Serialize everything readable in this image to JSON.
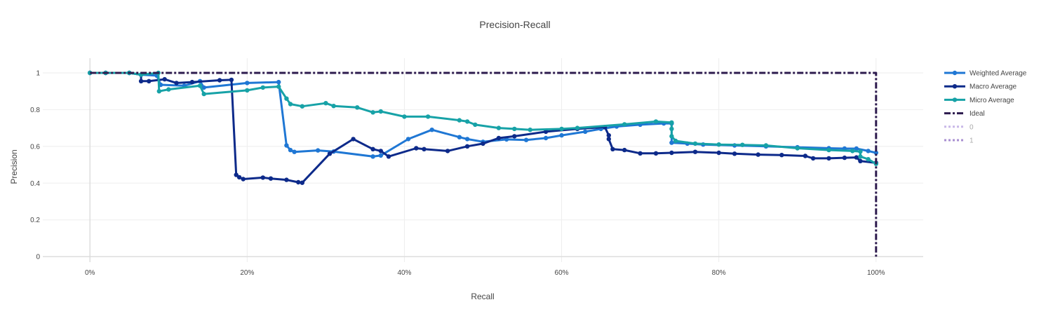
{
  "chart_data": {
    "type": "line",
    "title": "Precision-Recall",
    "xlabel": "Recall",
    "ylabel": "Precision",
    "xlim": [
      -0.06,
      1.06
    ],
    "ylim": [
      -0.03,
      1.08
    ],
    "x_ticks": [
      {
        "value": 0,
        "label": "0%"
      },
      {
        "value": 0.2,
        "label": "20%"
      },
      {
        "value": 0.4,
        "label": "40%"
      },
      {
        "value": 0.6,
        "label": "60%"
      },
      {
        "value": 0.8,
        "label": "80%"
      },
      {
        "value": 1.0,
        "label": "100%"
      }
    ],
    "y_ticks": [
      {
        "value": 0,
        "label": "0"
      },
      {
        "value": 0.2,
        "label": "0.2"
      },
      {
        "value": 0.4,
        "label": "0.4"
      },
      {
        "value": 0.6,
        "label": "0.6"
      },
      {
        "value": 0.8,
        "label": "0.8"
      },
      {
        "value": 1,
        "label": "1"
      }
    ],
    "grid": true,
    "legend_position": "top-right",
    "series": [
      {
        "name": "Weighted Average",
        "color": "#1f77d4",
        "markers": true,
        "dash": "solid",
        "points": [
          [
            0,
            1
          ],
          [
            0.02,
            1
          ],
          [
            0.05,
            1
          ],
          [
            0.065,
            0.99
          ],
          [
            0.085,
            0.985
          ],
          [
            0.09,
            0.935
          ],
          [
            0.12,
            0.93
          ],
          [
            0.14,
            0.955
          ],
          [
            0.145,
            0.92
          ],
          [
            0.2,
            0.945
          ],
          [
            0.24,
            0.95
          ],
          [
            0.25,
            0.605
          ],
          [
            0.255,
            0.58
          ],
          [
            0.26,
            0.57
          ],
          [
            0.29,
            0.578
          ],
          [
            0.31,
            0.572
          ],
          [
            0.36,
            0.545
          ],
          [
            0.37,
            0.55
          ],
          [
            0.405,
            0.64
          ],
          [
            0.435,
            0.69
          ],
          [
            0.47,
            0.65
          ],
          [
            0.48,
            0.64
          ],
          [
            0.5,
            0.625
          ],
          [
            0.53,
            0.638
          ],
          [
            0.555,
            0.635
          ],
          [
            0.58,
            0.645
          ],
          [
            0.6,
            0.66
          ],
          [
            0.63,
            0.68
          ],
          [
            0.65,
            0.695
          ],
          [
            0.67,
            0.708
          ],
          [
            0.7,
            0.718
          ],
          [
            0.73,
            0.725
          ],
          [
            0.74,
            0.725
          ],
          [
            0.74,
            0.62
          ],
          [
            0.76,
            0.615
          ],
          [
            0.78,
            0.61
          ],
          [
            0.82,
            0.605
          ],
          [
            0.86,
            0.6
          ],
          [
            0.9,
            0.595
          ],
          [
            0.94,
            0.59
          ],
          [
            0.96,
            0.588
          ],
          [
            0.975,
            0.588
          ],
          [
            0.99,
            0.575
          ],
          [
            1.0,
            0.565
          ]
        ]
      },
      {
        "name": "Macro Average",
        "color": "#0d2a8a",
        "markers": true,
        "dash": "solid",
        "points": [
          [
            0,
            1
          ],
          [
            0.02,
            1
          ],
          [
            0.05,
            1
          ],
          [
            0.065,
            0.99
          ],
          [
            0.065,
            0.955
          ],
          [
            0.075,
            0.955
          ],
          [
            0.095,
            0.965
          ],
          [
            0.11,
            0.945
          ],
          [
            0.13,
            0.95
          ],
          [
            0.165,
            0.96
          ],
          [
            0.18,
            0.962
          ],
          [
            0.186,
            0.445
          ],
          [
            0.19,
            0.432
          ],
          [
            0.195,
            0.422
          ],
          [
            0.22,
            0.43
          ],
          [
            0.23,
            0.425
          ],
          [
            0.25,
            0.418
          ],
          [
            0.265,
            0.405
          ],
          [
            0.27,
            0.402
          ],
          [
            0.305,
            0.56
          ],
          [
            0.335,
            0.64
          ],
          [
            0.36,
            0.585
          ],
          [
            0.37,
            0.575
          ],
          [
            0.38,
            0.545
          ],
          [
            0.415,
            0.59
          ],
          [
            0.425,
            0.585
          ],
          [
            0.455,
            0.575
          ],
          [
            0.48,
            0.6
          ],
          [
            0.5,
            0.615
          ],
          [
            0.52,
            0.645
          ],
          [
            0.54,
            0.655
          ],
          [
            0.58,
            0.68
          ],
          [
            0.62,
            0.695
          ],
          [
            0.655,
            0.705
          ],
          [
            0.66,
            0.66
          ],
          [
            0.66,
            0.64
          ],
          [
            0.665,
            0.585
          ],
          [
            0.68,
            0.58
          ],
          [
            0.7,
            0.562
          ],
          [
            0.72,
            0.562
          ],
          [
            0.74,
            0.565
          ],
          [
            0.77,
            0.57
          ],
          [
            0.8,
            0.565
          ],
          [
            0.82,
            0.56
          ],
          [
            0.85,
            0.555
          ],
          [
            0.88,
            0.553
          ],
          [
            0.91,
            0.548
          ],
          [
            0.92,
            0.535
          ],
          [
            0.94,
            0.535
          ],
          [
            0.96,
            0.538
          ],
          [
            0.975,
            0.54
          ],
          [
            0.98,
            0.52
          ],
          [
            1.0,
            0.51
          ]
        ]
      },
      {
        "name": "Micro Average",
        "color": "#17a2a7",
        "markers": true,
        "dash": "solid",
        "points": [
          [
            0,
            1
          ],
          [
            0.02,
            1
          ],
          [
            0.05,
            1
          ],
          [
            0.065,
            0.99
          ],
          [
            0.087,
            1
          ],
          [
            0.088,
            0.9
          ],
          [
            0.1,
            0.91
          ],
          [
            0.14,
            0.93
          ],
          [
            0.145,
            0.885
          ],
          [
            0.2,
            0.905
          ],
          [
            0.22,
            0.92
          ],
          [
            0.24,
            0.925
          ],
          [
            0.25,
            0.86
          ],
          [
            0.255,
            0.83
          ],
          [
            0.27,
            0.818
          ],
          [
            0.3,
            0.835
          ],
          [
            0.31,
            0.82
          ],
          [
            0.34,
            0.812
          ],
          [
            0.36,
            0.785
          ],
          [
            0.37,
            0.79
          ],
          [
            0.4,
            0.762
          ],
          [
            0.43,
            0.762
          ],
          [
            0.47,
            0.742
          ],
          [
            0.48,
            0.735
          ],
          [
            0.49,
            0.718
          ],
          [
            0.52,
            0.7
          ],
          [
            0.54,
            0.695
          ],
          [
            0.56,
            0.69
          ],
          [
            0.6,
            0.695
          ],
          [
            0.62,
            0.7
          ],
          [
            0.68,
            0.72
          ],
          [
            0.72,
            0.735
          ],
          [
            0.74,
            0.73
          ],
          [
            0.74,
            0.695
          ],
          [
            0.74,
            0.655
          ],
          [
            0.745,
            0.63
          ],
          [
            0.77,
            0.615
          ],
          [
            0.8,
            0.61
          ],
          [
            0.83,
            0.608
          ],
          [
            0.86,
            0.605
          ],
          [
            0.9,
            0.59
          ],
          [
            0.94,
            0.58
          ],
          [
            0.97,
            0.575
          ],
          [
            0.98,
            0.572
          ],
          [
            0.98,
            0.545
          ],
          [
            0.99,
            0.53
          ],
          [
            1.0,
            0.505
          ]
        ]
      },
      {
        "name": "Ideal",
        "color": "#2d1b4e",
        "markers": false,
        "dash": "dashdot",
        "points": [
          [
            0,
            1
          ],
          [
            1,
            1
          ],
          [
            1,
            0
          ]
        ]
      },
      {
        "name": "0",
        "color": "#c9b8e8",
        "markers": false,
        "dash": "dot",
        "dim": true,
        "points": []
      },
      {
        "name": "1",
        "color": "#a98fd1",
        "markers": false,
        "dash": "dot",
        "dim": true,
        "points": []
      }
    ]
  }
}
